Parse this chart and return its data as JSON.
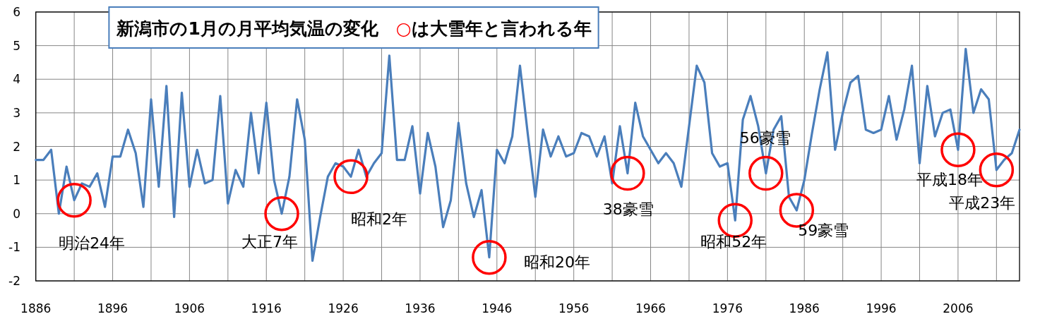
{
  "chart_data": {
    "type": "line",
    "title": "新潟市の1月の月平均気温の変化　○は大雪年と言われる年",
    "x": [
      1886,
      1887,
      1888,
      1889,
      1890,
      1891,
      1892,
      1893,
      1894,
      1895,
      1896,
      1897,
      1898,
      1899,
      1900,
      1901,
      1902,
      1903,
      1904,
      1905,
      1906,
      1907,
      1908,
      1909,
      1910,
      1911,
      1912,
      1913,
      1914,
      1915,
      1916,
      1917,
      1918,
      1919,
      1920,
      1921,
      1922,
      1923,
      1924,
      1925,
      1926,
      1927,
      1928,
      1929,
      1930,
      1931,
      1932,
      1933,
      1934,
      1935,
      1936,
      1937,
      1938,
      1939,
      1940,
      1941,
      1942,
      1943,
      1944,
      1945,
      1946,
      1947,
      1948,
      1949,
      1950,
      1951,
      1952,
      1953,
      1954,
      1955,
      1956,
      1957,
      1958,
      1959,
      1960,
      1961,
      1962,
      1963,
      1964,
      1965,
      1966,
      1967,
      1968,
      1969,
      1970,
      1971,
      1972,
      1973,
      1974,
      1975,
      1976,
      1977,
      1978,
      1979,
      1980,
      1981,
      1982,
      1983,
      1984,
      1985,
      1986,
      1987,
      1988,
      1989,
      1990,
      1991,
      1992,
      1993,
      1994,
      1995,
      1996,
      1997,
      1998,
      1999,
      2000,
      2001,
      2002,
      2003,
      2004,
      2005,
      2006,
      2007,
      2008,
      2009,
      2010,
      2011,
      2012,
      2013,
      2014
    ],
    "series": [
      {
        "color": "#4a7ebb",
        "values": [
          1.6,
          1.6,
          1.9,
          0.0,
          1.4,
          0.4,
          0.9,
          0.8,
          1.2,
          0.2,
          1.7,
          1.7,
          2.5,
          1.8,
          0.2,
          3.4,
          0.8,
          3.8,
          -0.1,
          3.6,
          0.8,
          1.9,
          0.9,
          1.0,
          3.5,
          0.3,
          1.3,
          0.8,
          3.0,
          1.2,
          3.3,
          1.0,
          0.0,
          1.1,
          3.4,
          2.2,
          -1.4,
          -0.1,
          1.1,
          1.5,
          1.4,
          1.1,
          1.9,
          1.1,
          1.5,
          1.8,
          4.7,
          1.6,
          1.6,
          2.6,
          0.6,
          2.4,
          1.4,
          -0.4,
          0.4,
          2.7,
          0.9,
          -0.1,
          0.7,
          -1.3,
          1.9,
          1.5,
          2.3,
          4.4,
          2.4,
          0.5,
          2.5,
          1.7,
          2.3,
          1.7,
          1.8,
          2.4,
          2.3,
          1.7,
          2.3,
          0.9,
          2.6,
          1.2,
          3.3,
          2.3,
          1.9,
          1.5,
          1.8,
          1.5,
          0.8,
          2.6,
          4.4,
          3.9,
          1.8,
          1.4,
          1.5,
          -0.2,
          2.8,
          3.5,
          2.6,
          1.2,
          2.5,
          2.9,
          0.5,
          0.1,
          1.0,
          2.4,
          3.7,
          4.8,
          1.9,
          3.0,
          3.9,
          4.1,
          2.5,
          2.4,
          2.5,
          3.5,
          2.2,
          3.1,
          4.4,
          1.5,
          3.8,
          2.3,
          3.0,
          3.1,
          1.9,
          4.9,
          3.0,
          3.7,
          3.4,
          1.3,
          1.6,
          1.8,
          2.5
        ]
      }
    ],
    "xlim": [
      1886,
      2014
    ],
    "xticks": [
      1886,
      {
        "value": 1891,
        "label": null
      },
      1896,
      {
        "value": 1901,
        "label": null
      },
      1906,
      {
        "value": 1911,
        "label": null
      },
      1916,
      {
        "value": 1921,
        "label": null
      },
      1926,
      {
        "value": 1931,
        "label": null
      },
      1936,
      {
        "value": 1941,
        "label": null
      },
      1946,
      {
        "value": 1951,
        "label": null
      },
      1956,
      {
        "value": 1961,
        "label": null
      },
      1966,
      {
        "value": 1971,
        "label": null
      },
      1976,
      {
        "value": 1981,
        "label": null
      },
      1986,
      {
        "value": 1991,
        "label": null
      },
      1996,
      {
        "value": 2001,
        "label": null
      },
      2006,
      {
        "value": 2011,
        "label": null
      }
    ],
    "ylim": [
      -2,
      6
    ],
    "yticks": [
      -2,
      -1,
      0,
      1,
      2,
      3,
      4,
      5,
      6
    ],
    "grid": true,
    "annotations": [
      {
        "text": "明治24年",
        "x": 1891,
        "y": 0.4
      },
      {
        "text": "大正7年",
        "x": 1918,
        "y": 0.0
      },
      {
        "text": "昭和2年",
        "x": 1927,
        "y": 1.1
      },
      {
        "text": "昭和20年",
        "x": 1945,
        "y": -1.3
      },
      {
        "text": "38豪雪",
        "x": 1963,
        "y": 1.2
      },
      {
        "text": "昭和52年",
        "x": 1977,
        "y": -0.2
      },
      {
        "text": "56豪雪",
        "x": 1981,
        "y": 1.2
      },
      {
        "text": "59豪雪",
        "x": 1985,
        "y": 0.1
      },
      {
        "text": "平成18年",
        "x": 2006,
        "y": 1.9
      },
      {
        "text": "平成23年",
        "x": 2011,
        "y": 1.3
      }
    ]
  }
}
